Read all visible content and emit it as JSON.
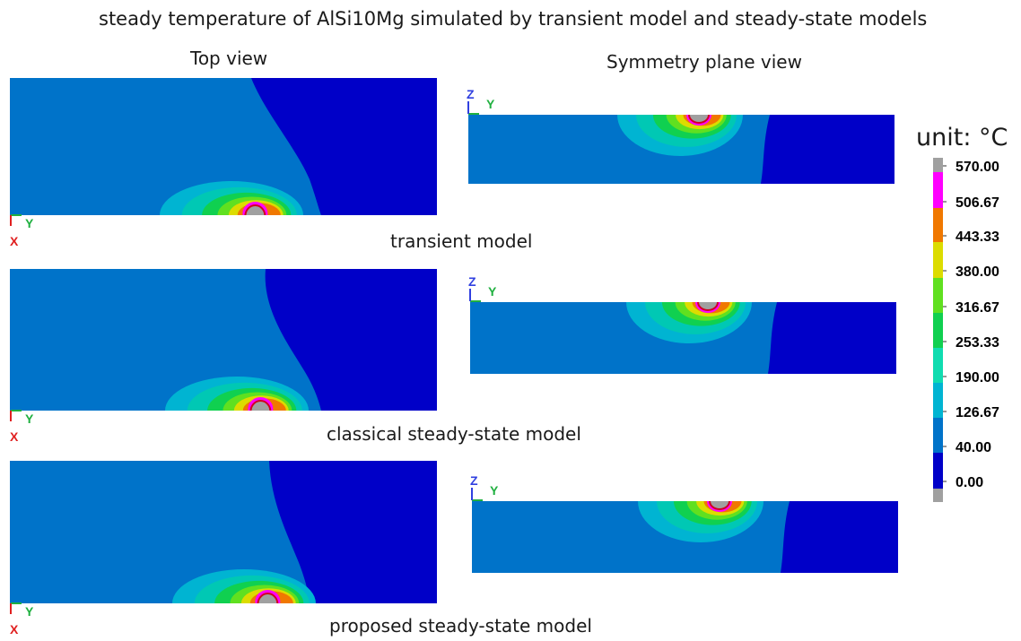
{
  "title": "steady temperature of AlSi10Mg simulated by transient model and steady-state models",
  "column_headers": {
    "top": "Top view",
    "symmetry": "Symmetry plane view"
  },
  "rows": [
    {
      "model": "transient model"
    },
    {
      "model": "classical steady-state model"
    },
    {
      "model": "proposed steady-state model"
    }
  ],
  "axis_labels": {
    "x": "X",
    "y": "Y",
    "z": "Z"
  },
  "legend": {
    "title": "unit: °C",
    "ticks": [
      "570.00",
      "506.67",
      "443.33",
      "380.00",
      "316.67",
      "253.33",
      "190.00",
      "126.67",
      "40.00",
      "0.00"
    ]
  },
  "colors": {
    "dark_blue": "#0000c8",
    "medium_blue": "#0073c9",
    "cyan": "#00b4d2",
    "teal": "#00c8b4",
    "green": "#10d050",
    "light_green": "#60e020",
    "yellow": "#dcdc00",
    "orange": "#f07800",
    "magenta": "#ff00ff",
    "gray": "#a0a0a0",
    "melt_outline": "#d00020",
    "axis_x": "#e02020",
    "axis_y": "#20b040",
    "axis_z": "#3040e0"
  }
}
